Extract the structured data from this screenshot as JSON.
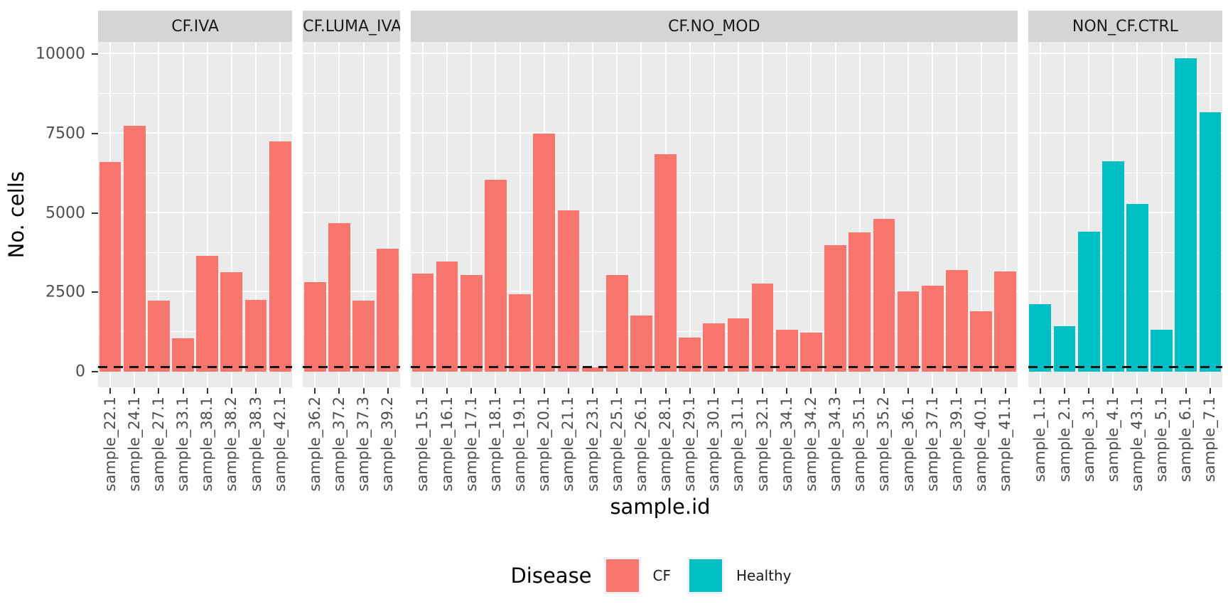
{
  "axes": {
    "y_label": "No. cells",
    "x_label": "sample.id",
    "y_ticks": [
      "0",
      "2500",
      "5000",
      "7500",
      "10000"
    ]
  },
  "legend": {
    "title": "Disease",
    "items": [
      {
        "label": "CF",
        "color": "#F8766D"
      },
      {
        "label": "Healthy",
        "color": "#00BFC4"
      }
    ]
  },
  "chart_data": {
    "type": "bar",
    "title": "",
    "xlabel": "sample.id",
    "ylabel": "No. cells",
    "y_tick_values": [
      0,
      2500,
      5000,
      7500,
      10000
    ],
    "y_minor_tick_values": [
      1250,
      3750,
      6250,
      8750
    ],
    "ylim": [
      -494,
      10390
    ],
    "grid": true,
    "legend_position": "bottom",
    "threshold_line": {
      "value": 100,
      "style": "dashed",
      "color": "#000000"
    },
    "facets": [
      {
        "label": "CF.IVA",
        "disease": "CF",
        "categories": [
          "sample_22.1",
          "sample_24.1",
          "sample_27.1",
          "sample_33.1",
          "sample_38.1",
          "sample_38.2",
          "sample_38.3",
          "sample_42.1"
        ],
        "values": [
          6600,
          7750,
          2230,
          1050,
          3650,
          3130,
          2260,
          7250
        ]
      },
      {
        "label": "CF.LUMA_IVA",
        "disease": "CF",
        "categories": [
          "sample_36.2",
          "sample_37.2",
          "sample_37.3",
          "sample_39.2"
        ],
        "values": [
          2810,
          4690,
          2250,
          3880
        ]
      },
      {
        "label": "CF.NO_MOD",
        "disease": "CF",
        "categories": [
          "sample_15.1",
          "sample_16.1",
          "sample_17.1",
          "sample_18.1",
          "sample_19.1",
          "sample_20.1",
          "sample_21.1",
          "sample_23.1",
          "sample_25.1",
          "sample_26.1",
          "sample_28.1",
          "sample_29.1",
          "sample_30.1",
          "sample_31.1",
          "sample_32.1",
          "sample_34.1",
          "sample_34.2",
          "sample_34.3",
          "sample_35.1",
          "sample_35.2",
          "sample_36.1",
          "sample_37.1",
          "sample_39.1",
          "sample_40.1",
          "sample_41.1"
        ],
        "values": [
          3080,
          3480,
          3040,
          6050,
          2440,
          7500,
          5080,
          130,
          3040,
          1770,
          6850,
          1080,
          1530,
          1680,
          2780,
          1310,
          1220,
          3990,
          4390,
          4820,
          2520,
          2710,
          3200,
          1910,
          3150
        ]
      },
      {
        "label": "NON_CF.CTRL",
        "disease": "Healthy",
        "categories": [
          "sample_1.1",
          "sample_2.1",
          "sample_3.1",
          "sample_4.1",
          "sample_43.1",
          "sample_5.1",
          "sample_6.1",
          "sample_7.1"
        ],
        "values": [
          2130,
          1430,
          4400,
          6630,
          5290,
          1330,
          9880,
          8170
        ]
      }
    ]
  },
  "colors": {
    "cf": "#F8766D",
    "healthy": "#00BFC4",
    "panel_bg": "#EBEBEB",
    "strip_bg": "#D5D5D5",
    "gridline": "#FFFFFF",
    "tick_text": "#4D4D4D",
    "strip_text": "#1A1A1A"
  }
}
